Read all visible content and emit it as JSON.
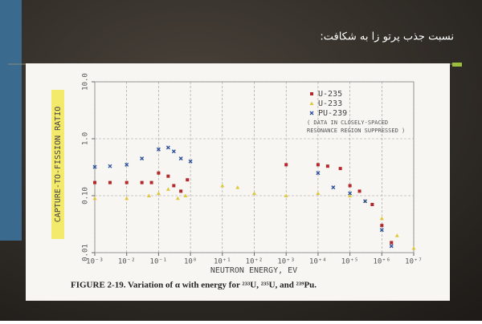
{
  "slide": {
    "title": "نسبت جذب پرتو زا به شکافت:"
  },
  "chart_data": {
    "type": "scatter",
    "caption": "FIGURE 2-19.    Variation of α with energy for ²³³U, ²³⁵U, and ²³⁹Pu.",
    "xlabel": "NEUTRON ENERGY, EV",
    "ylabel": "CAPTURE-TO-FISSION RATIO",
    "annotation": [
      "( DATA IN CLOSELY-SPACED",
      "RESONANCE REGION SUPPRESSED )"
    ],
    "xscale": "log",
    "yscale": "log",
    "grid": true,
    "legend": "upper right",
    "xlim": [
      0.001,
      10000000
    ],
    "ylim": [
      0.01,
      10
    ],
    "xticks": [
      {
        "value": 0.001,
        "label": "10⁻³"
      },
      {
        "value": 0.01,
        "label": "10⁻²"
      },
      {
        "value": 0.1,
        "label": "10⁻¹"
      },
      {
        "value": 1,
        "label": "10⁰"
      },
      {
        "value": 10,
        "label": "10⁺¹"
      },
      {
        "value": 100,
        "label": "10⁺²"
      },
      {
        "value": 1000,
        "label": "10⁺³"
      },
      {
        "value": 10000,
        "label": "10⁺⁴"
      },
      {
        "value": 100000,
        "label": "10⁺⁵"
      },
      {
        "value": 1000000,
        "label": "10⁺⁶"
      },
      {
        "value": 10000000,
        "label": "10⁺⁷"
      }
    ],
    "yticks": [
      0.01,
      {
        "value": 0.1,
        "label": "0.10"
      },
      {
        "value": 1,
        "label": "1.0"
      },
      {
        "value": 10,
        "label": "10.0"
      }
    ],
    "series": [
      {
        "name": "U-235",
        "color": "#b3282b",
        "marker": "square",
        "x": [
          0.001,
          0.003,
          0.01,
          0.03,
          0.06,
          0.1,
          0.2,
          0.3,
          0.5,
          0.8,
          1000,
          10000,
          20000,
          50000,
          100000,
          200000,
          500000,
          1000000,
          2000000
        ],
        "values": [
          0.17,
          0.17,
          0.17,
          0.17,
          0.17,
          0.25,
          0.22,
          0.15,
          0.12,
          0.19,
          0.35,
          0.35,
          0.33,
          0.3,
          0.15,
          0.12,
          0.07,
          0.03,
          0.015
        ]
      },
      {
        "name": "U-233",
        "color": "#e0c83c",
        "marker": "triangle",
        "x": [
          0.001,
          0.01,
          0.05,
          0.1,
          0.2,
          0.4,
          0.7,
          10,
          30,
          100,
          1000,
          10000,
          100000,
          300000,
          1000000,
          3000000,
          10000000
        ],
        "values": [
          0.09,
          0.09,
          0.1,
          0.11,
          0.13,
          0.09,
          0.1,
          0.15,
          0.14,
          0.11,
          0.1,
          0.11,
          0.1,
          0.08,
          0.04,
          0.02,
          0.012
        ]
      },
      {
        "name": "PU-239",
        "color": "#2b4f9e",
        "marker": "x",
        "x": [
          0.001,
          0.003,
          0.01,
          0.03,
          0.1,
          0.2,
          0.3,
          0.5,
          1,
          10000,
          30000,
          100000,
          300000,
          1000000,
          2000000
        ],
        "values": [
          0.32,
          0.33,
          0.35,
          0.45,
          0.65,
          0.7,
          0.6,
          0.45,
          0.4,
          0.25,
          0.14,
          0.11,
          0.08,
          0.025,
          0.013
        ]
      }
    ]
  }
}
